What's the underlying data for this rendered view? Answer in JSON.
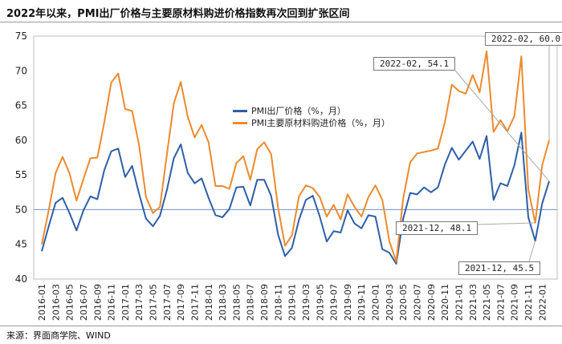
{
  "title": "2022年以来，PMI出厂价格与主要原材料购进价格指数再次回到扩张区间",
  "source": "来源：界面商学院、WIND",
  "chart_data": {
    "type": "line",
    "categories": [
      "2016-01",
      "2016-02",
      "2016-03",
      "2016-04",
      "2016-05",
      "2016-06",
      "2016-07",
      "2016-08",
      "2016-09",
      "2016-10",
      "2016-11",
      "2016-12",
      "2017-01",
      "2017-02",
      "2017-03",
      "2017-04",
      "2017-05",
      "2017-06",
      "2017-07",
      "2017-08",
      "2017-09",
      "2017-10",
      "2017-11",
      "2017-12",
      "2018-01",
      "2018-02",
      "2018-03",
      "2018-04",
      "2018-05",
      "2018-06",
      "2018-07",
      "2018-08",
      "2018-09",
      "2018-10",
      "2018-11",
      "2018-12",
      "2019-01",
      "2019-02",
      "2019-03",
      "2019-04",
      "2019-05",
      "2019-06",
      "2019-07",
      "2019-08",
      "2019-09",
      "2019-10",
      "2019-11",
      "2019-12",
      "2020-01",
      "2020-02",
      "2020-03",
      "2020-04",
      "2020-05",
      "2020-06",
      "2020-07",
      "2020-08",
      "2020-09",
      "2020-10",
      "2020-11",
      "2020-12",
      "2021-01",
      "2021-02",
      "2021-03",
      "2021-04",
      "2021-05",
      "2021-06",
      "2021-07",
      "2021-08",
      "2021-09",
      "2021-10",
      "2021-11",
      "2021-12",
      "2022-01",
      "2022-02"
    ],
    "tick_labels": [
      "2016-01",
      "2016-03",
      "2016-05",
      "2016-07",
      "2016-09",
      "2016-11",
      "2017-01",
      "2017-03",
      "2017-05",
      "2017-07",
      "2017-09",
      "2017-11",
      "2018-01",
      "2018-03",
      "2018-05",
      "2018-07",
      "2018-09",
      "2018-11",
      "2019-01",
      "2019-03",
      "2019-05",
      "2019-07",
      "2019-09",
      "2019-11",
      "2020-01",
      "2020-03",
      "2020-05",
      "2020-07",
      "2020-09",
      "2020-11",
      "2021-01",
      "2021-03",
      "2021-05",
      "2021-07",
      "2021-09",
      "2021-11",
      "2022-01"
    ],
    "ylim": [
      40,
      75
    ],
    "yticks": [
      40,
      45,
      50,
      55,
      60,
      65,
      70,
      75
    ],
    "reference_line": 50,
    "legend_position": "center",
    "series": [
      {
        "name": "PMI出厂价格（%，月）",
        "color": "#2e5fa8",
        "values": [
          44.0,
          47.6,
          51.0,
          51.7,
          49.5,
          47.0,
          49.9,
          51.9,
          51.5,
          55.7,
          58.4,
          58.8,
          54.7,
          56.3,
          52.3,
          48.7,
          47.6,
          49.1,
          52.8,
          57.4,
          59.4,
          55.3,
          53.8,
          54.5,
          51.7,
          49.2,
          48.9,
          50.1,
          53.2,
          53.3,
          50.6,
          54.3,
          54.3,
          52.0,
          46.4,
          43.3,
          44.5,
          48.5,
          51.4,
          52.0,
          49.0,
          45.4,
          46.9,
          46.7,
          49.9,
          48.0,
          47.3,
          49.2,
          49.0,
          44.3,
          43.8,
          42.2,
          48.7,
          52.4,
          52.2,
          53.2,
          52.5,
          53.2,
          56.5,
          58.9,
          57.2,
          58.5,
          59.8,
          57.3,
          60.6,
          51.4,
          53.8,
          53.4,
          56.4,
          61.1,
          48.9,
          45.5,
          50.9,
          54.1
        ]
      },
      {
        "name": "PMI主要原材料购进价格（%，月）",
        "color": "#ec8a2e",
        "values": [
          45.0,
          49.9,
          55.3,
          57.6,
          55.2,
          51.3,
          54.4,
          57.4,
          57.5,
          62.6,
          68.3,
          69.6,
          64.5,
          64.2,
          59.3,
          51.8,
          49.5,
          50.4,
          57.9,
          65.3,
          68.4,
          63.4,
          60.4,
          62.2,
          59.7,
          53.4,
          53.4,
          53.0,
          56.7,
          57.7,
          54.3,
          58.7,
          59.7,
          58.0,
          50.3,
          44.8,
          46.3,
          51.9,
          53.5,
          53.1,
          51.8,
          49.0,
          50.7,
          48.6,
          52.2,
          50.4,
          49.0,
          51.8,
          53.5,
          51.4,
          45.5,
          42.5,
          51.6,
          56.8,
          58.1,
          58.3,
          58.5,
          58.8,
          62.6,
          68.0,
          67.1,
          66.7,
          69.4,
          66.9,
          72.8,
          61.2,
          62.9,
          61.3,
          63.5,
          72.1,
          52.9,
          48.1,
          56.4,
          60.0
        ]
      }
    ],
    "annotations": [
      {
        "label": "2022-02, 60.0",
        "series": 1,
        "index": 73
      },
      {
        "label": "2022-02, 54.1",
        "series": 0,
        "index": 73
      },
      {
        "label": "2021-12, 48.1",
        "series": 1,
        "index": 71
      },
      {
        "label": "2021-12, 45.5",
        "series": 0,
        "index": 71
      }
    ]
  }
}
